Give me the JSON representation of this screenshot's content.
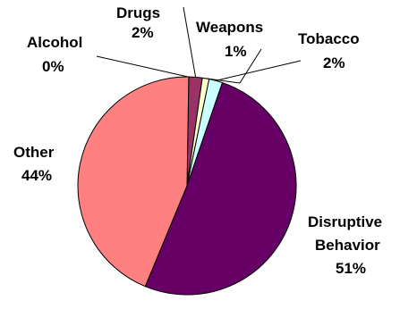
{
  "chart_data": {
    "type": "pie",
    "title": "",
    "slices": [
      {
        "name": "Alcohol",
        "value": 0,
        "label": "0%",
        "color": "#9999ff"
      },
      {
        "name": "Drugs",
        "value": 2,
        "label": "2%",
        "color": "#993366"
      },
      {
        "name": "Weapons",
        "value": 1,
        "label": "1%",
        "color": "#ffffcc"
      },
      {
        "name": "Tobacco",
        "value": 2,
        "label": "2%",
        "color": "#ccffff"
      },
      {
        "name": "Disruptive Behavior",
        "name_lines": [
          "Disruptive",
          "Behavior"
        ],
        "value": 51,
        "label": "51%",
        "color": "#660066"
      },
      {
        "name": "Other",
        "value": 44,
        "label": "44%",
        "color": "#ff8080"
      }
    ],
    "legend": "none"
  }
}
